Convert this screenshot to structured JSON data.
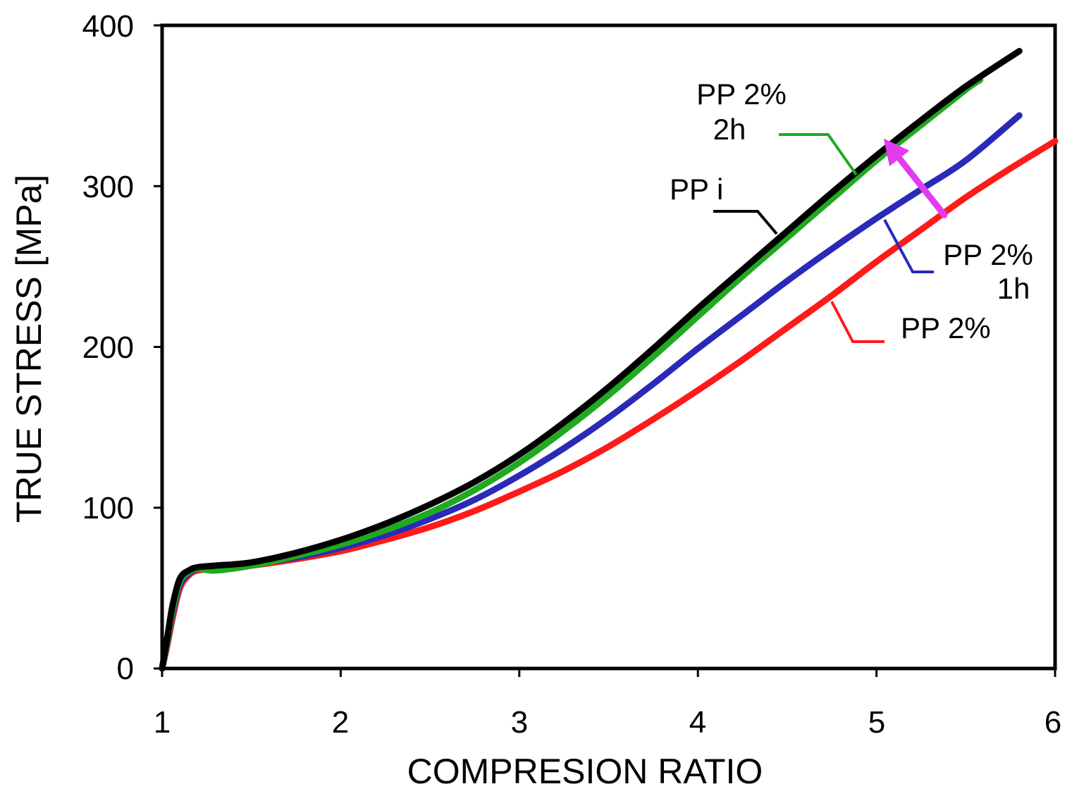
{
  "chart_data": {
    "type": "line",
    "title": "",
    "xlabel": "COMPRESION RATIO",
    "ylabel": "TRUE STRESS [MPa]",
    "xlim": [
      1,
      6
    ],
    "ylim": [
      0,
      400
    ],
    "xticks": [
      1,
      2,
      3,
      4,
      5,
      6
    ],
    "yticks": [
      0,
      100,
      200,
      300,
      400
    ],
    "xtick_labels": [
      "1",
      "2",
      "3",
      "4",
      "5",
      "6"
    ],
    "ytick_labels": [
      "0",
      "100",
      "200",
      "300",
      "400"
    ],
    "grid": false,
    "legend": "inline labels",
    "series": [
      {
        "name": "PP 2%",
        "label": "PP 2%",
        "color": "#ff1a1a",
        "x": [
          1.0,
          1.03,
          1.06,
          1.1,
          1.15,
          1.2,
          1.3,
          1.5,
          1.75,
          2.0,
          2.25,
          2.5,
          2.75,
          3.0,
          3.25,
          3.5,
          3.75,
          4.0,
          4.25,
          4.5,
          4.75,
          5.0,
          5.25,
          5.5,
          5.75,
          6.0
        ],
        "y": [
          0,
          15,
          32,
          50,
          58,
          61,
          62,
          64,
          68,
          73,
          80,
          88,
          98,
          110,
          123,
          138,
          155,
          173,
          192,
          212,
          232,
          253,
          273,
          293,
          311,
          328
        ]
      },
      {
        "name": "PP 2% 1h",
        "label": "PP 2%\n1h",
        "color": "#2a2ab8",
        "x": [
          1.0,
          1.03,
          1.06,
          1.1,
          1.15,
          1.2,
          1.3,
          1.5,
          1.75,
          2.0,
          2.25,
          2.5,
          2.75,
          3.0,
          3.25,
          3.5,
          3.75,
          4.0,
          4.25,
          4.5,
          4.75,
          5.0,
          5.25,
          5.5,
          5.8
        ],
        "y": [
          0,
          17,
          35,
          52,
          59,
          62,
          63,
          65,
          69,
          75,
          83,
          93,
          105,
          120,
          137,
          156,
          177,
          199,
          220,
          241,
          261,
          280,
          298,
          316,
          344
        ]
      },
      {
        "name": "PP 2% 2h",
        "label": "PP 2%\n2h",
        "color": "#1faa1f",
        "x": [
          1.0,
          1.03,
          1.06,
          1.1,
          1.15,
          1.2,
          1.3,
          1.5,
          1.75,
          2.0,
          2.25,
          2.5,
          2.75,
          3.0,
          3.25,
          3.5,
          3.75,
          4.0,
          4.25,
          4.5,
          4.75,
          5.0,
          5.25,
          5.5,
          5.58
        ],
        "y": [
          0,
          18,
          37,
          54,
          60,
          62,
          61,
          64,
          70,
          77,
          86,
          97,
          111,
          128,
          148,
          170,
          194,
          219,
          244,
          268,
          292,
          316,
          338,
          360,
          366
        ]
      },
      {
        "name": "PP i",
        "label": "PP i",
        "color": "#000000",
        "x": [
          1.0,
          1.03,
          1.06,
          1.1,
          1.15,
          1.2,
          1.3,
          1.5,
          1.75,
          2.0,
          2.25,
          2.5,
          2.75,
          3.0,
          3.25,
          3.5,
          3.75,
          4.0,
          4.25,
          4.5,
          4.75,
          5.0,
          5.25,
          5.5,
          5.8
        ],
        "y": [
          0,
          20,
          40,
          56,
          61,
          63,
          64,
          66,
          72,
          80,
          90,
          102,
          116,
          133,
          153,
          175,
          199,
          224,
          248,
          272,
          296,
          319,
          341,
          362,
          384
        ]
      }
    ],
    "annotations": [
      {
        "type": "arrow",
        "color": "#e13bf0",
        "from": [
          5.38,
          282
        ],
        "to": [
          5.08,
          324
        ]
      }
    ]
  }
}
